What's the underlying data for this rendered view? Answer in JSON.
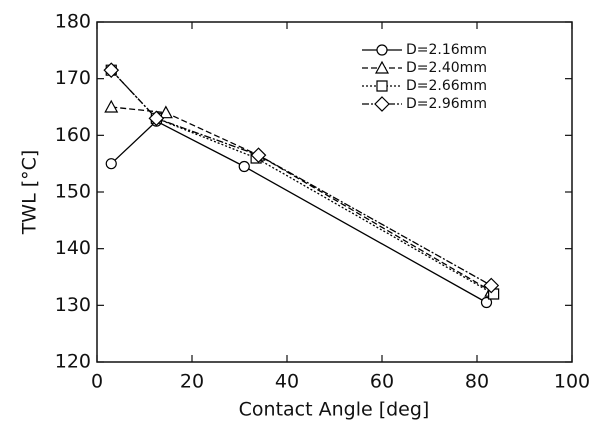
{
  "chart_data": {
    "type": "line",
    "x_label": "Contact Angle [deg]",
    "y_label": "TWL [°C]",
    "xlim": [
      0,
      100
    ],
    "xticks": [
      0,
      20,
      40,
      60,
      80,
      100
    ],
    "ylim": [
      120,
      180
    ],
    "yticks": [
      120,
      130,
      140,
      150,
      160,
      170,
      180
    ],
    "legend": "upper right",
    "series": [
      {
        "name": "D=2.16mm",
        "color": "#000000",
        "linestyle": "solid",
        "marker": "circle",
        "x": [
          3,
          12.5,
          31,
          82
        ],
        "values": [
          155,
          162.5,
          154.5,
          130.5
        ]
      },
      {
        "name": "D=2.40mm",
        "color": "#000000",
        "linestyle": "dashed",
        "marker": "triangle",
        "x": [
          3,
          14.5,
          34,
          83
        ],
        "values": [
          165,
          164,
          156.5,
          132.5
        ]
      },
      {
        "name": "D=2.66mm",
        "color": "#000000",
        "linestyle": "dotted",
        "marker": "square",
        "x": [
          3,
          12.5,
          33.5,
          83.5
        ],
        "values": [
          171.5,
          163,
          156,
          132
        ]
      },
      {
        "name": "D=2.96mm",
        "color": "#000000",
        "linestyle": "dashdot",
        "marker": "diamond",
        "x": [
          3,
          12.5,
          34,
          83
        ],
        "values": [
          171.5,
          163,
          156.5,
          133.5
        ]
      }
    ]
  }
}
